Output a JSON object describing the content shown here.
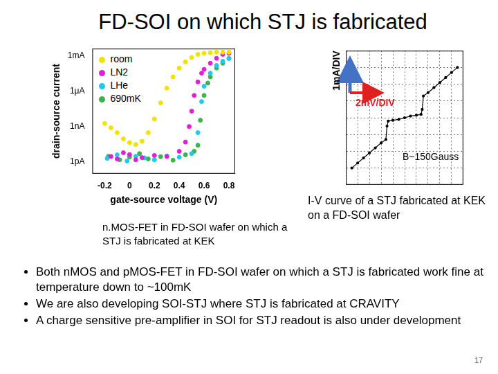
{
  "title": "FD-SOI on which STJ is fabricated",
  "chart_data": [
    {
      "type": "scatter",
      "x_label": "gate-source voltage (V)",
      "y_label": "drain-source current",
      "log": "y",
      "grid": false,
      "legend": "upper left",
      "marker": "circle",
      "xlim": [
        -0.3,
        0.85
      ],
      "xticks": [
        -0.2,
        0,
        0.2,
        0.4,
        0.6,
        0.8
      ],
      "ylim": [
        1e-13,
        0.004
      ],
      "yticks": [
        {
          "value": 1e-12,
          "label": "1pA"
        },
        {
          "value": 1e-09,
          "label": "1nA"
        },
        {
          "value": 1e-06,
          "label": "1μA"
        },
        {
          "value": 0.001,
          "label": "1mA"
        }
      ],
      "series": [
        {
          "name": "room",
          "color": "#f2e200",
          "x": [
            -0.2,
            -0.15,
            -0.1,
            -0.05,
            0,
            0.05,
            0.1,
            0.15,
            0.2,
            0.25,
            0.3,
            0.35,
            0.4,
            0.45,
            0.5,
            0.55,
            0.6,
            0.65,
            0.7,
            0.75,
            0.8
          ],
          "values": [
            1.8e-09,
            7.8e-10,
            3e-10,
            9e-11,
            4.3e-11,
            3e-11,
            5.5e-11,
            3e-10,
            4.3e-09,
            1e-07,
            1.8e-06,
            1.6e-05,
            9e-05,
            0.0003,
            0.0007,
            0.0013,
            0.0016,
            0.0018,
            0.002,
            0.002,
            0.002
          ]
        },
        {
          "name": "LN2",
          "color": "#e020d8",
          "x": [
            -0.15,
            -0.1,
            -0.05,
            0,
            0.05,
            0.1,
            0.2,
            0.3,
            0.4,
            0.45,
            0.48,
            0.5,
            0.52,
            0.55,
            0.58,
            0.6,
            0.65,
            0.7,
            0.75,
            0.8
          ],
          "values": [
            2.9e-12,
            1.8e-12,
            6e-12,
            4.2e-12,
            1.5e-12,
            2.3e-12,
            3.5e-12,
            2.9e-12,
            7.9e-12,
            4.8e-11,
            1e-09,
            2e-08,
            4.3e-07,
            6e-06,
            3.3e-05,
            7e-05,
            0.00023,
            0.0006,
            0.0013,
            0.0016
          ]
        },
        {
          "name": "LHe",
          "color": "#22c8ee",
          "x": [
            -0.18,
            -0.1,
            -0.02,
            0.05,
            0.12,
            0.2,
            0.3,
            0.4,
            0.5,
            0.55,
            0.58,
            0.6,
            0.65,
            0.7,
            0.75,
            0.8
          ],
          "values": [
            2e-12,
            4e-12,
            1.2e-12,
            3e-12,
            2.2e-12,
            1.5e-12,
            3.2e-12,
            2.5e-12,
            5e-12,
            3e-10,
            1.3e-07,
            2.6e-06,
            3.3e-05,
            0.00015,
            0.00034,
            0.0006
          ]
        },
        {
          "name": "690mK",
          "color": "#3cb44a",
          "x": [
            -0.17,
            -0.08,
            0,
            0.08,
            0.15,
            0.25,
            0.35,
            0.45,
            0.52,
            0.55,
            0.57,
            0.6,
            0.63,
            0.65,
            0.7,
            0.75,
            0.8
          ],
          "values": [
            3e-12,
            1.5e-12,
            2.6e-12,
            5e-12,
            1.8e-12,
            2.8e-12,
            1.4e-12,
            4e-12,
            8e-12,
            2.6e-11,
            3.4e-09,
            4.3e-07,
            4.8e-06,
            1.6e-05,
            9e-05,
            0.00023,
            0.0006
          ]
        }
      ]
    },
    {
      "type": "line",
      "annotations": [
        "1mA/DIV",
        "2mV/DIV",
        "B~150Gauss"
      ],
      "grid": true,
      "tick_labels": false,
      "color": "#000000",
      "line_style": "solid",
      "xlim": [
        -10,
        10
      ],
      "xticks": [
        -10,
        -8,
        -6,
        -4,
        -2,
        0,
        2,
        4,
        6,
        8,
        10
      ],
      "ylim": [
        -4,
        4
      ],
      "yticks": [
        -4,
        -3,
        -2,
        -1,
        0,
        1,
        2,
        3,
        4
      ],
      "x": [
        -9,
        -8,
        -7,
        -6,
        -5,
        -4,
        -3.2,
        -3,
        -2.8,
        -2,
        -1,
        0,
        1,
        2,
        2.8,
        3,
        3.2,
        4,
        5,
        6,
        7,
        8,
        9
      ],
      "values": [
        -3,
        -2.7,
        -2.4,
        -2.1,
        -1.8,
        -1.5,
        -1.3,
        -0.5,
        -0.2,
        -0.15,
        -0.1,
        0,
        0.1,
        0.15,
        0.2,
        0.5,
        1.3,
        1.5,
        1.8,
        2.1,
        2.4,
        2.7,
        3
      ]
    }
  ],
  "captions": [
    "n.MOS-FET in FD-SOI wafer on which a STJ is fabricated at KEK",
    "I-V curve of a STJ fabricated at KEK on a FD-SOI wafer"
  ],
  "bullets": [
    "Both nMOS and pMOS-FET in FD-SOI wafer on which a STJ is fabricated work fine at temperature down to ~100mK",
    "We are also developing SOI-STJ where STJ is fabricated at CRAVITY",
    "A charge sensitive pre-amplifier in SOI for STJ readout is also under development"
  ],
  "page_number": 17
}
